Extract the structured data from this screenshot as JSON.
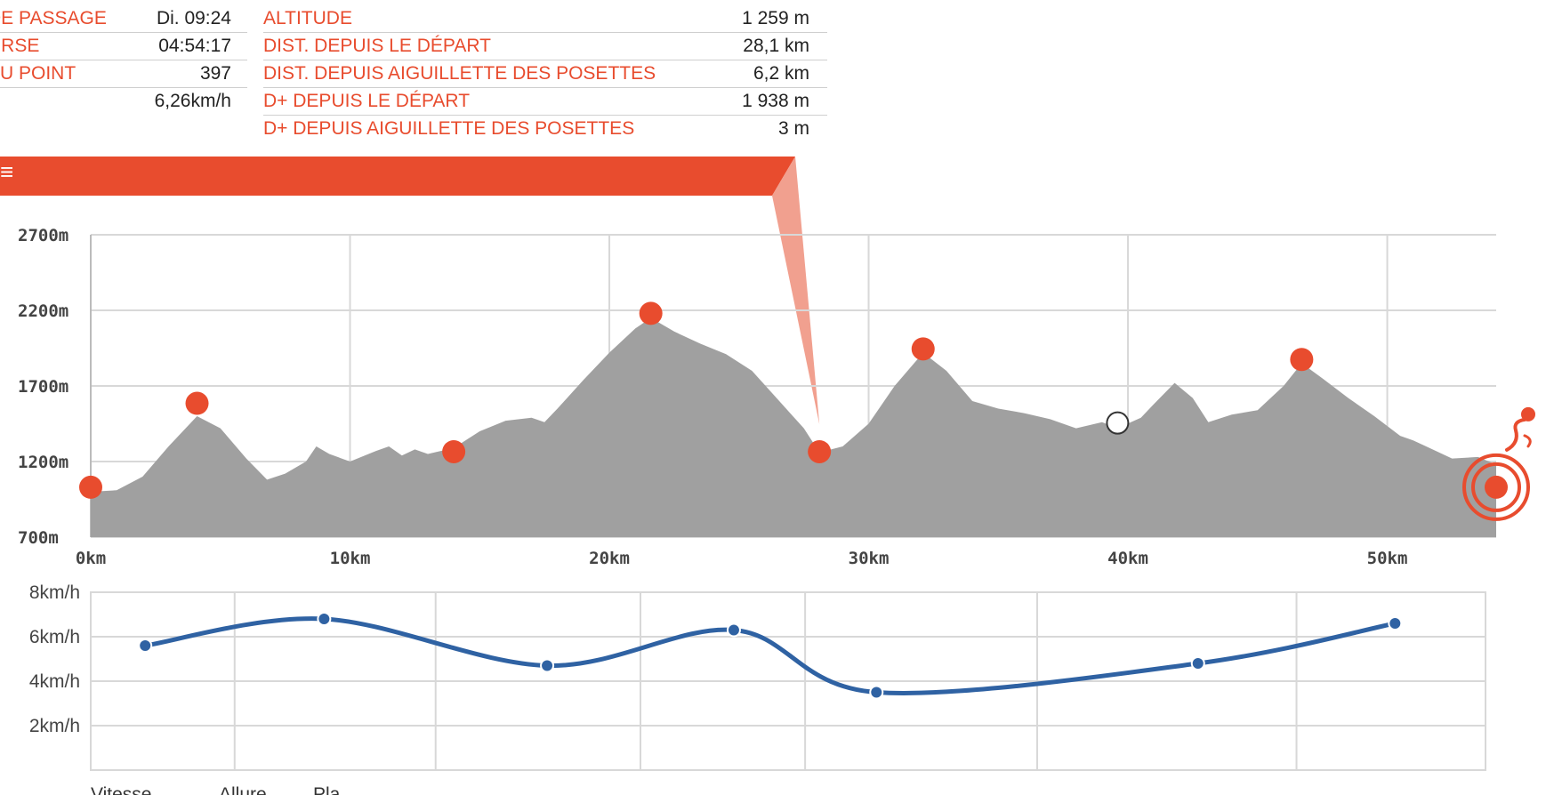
{
  "info_left": [
    {
      "label": "DE PASSAGE",
      "value": "Di. 09:24"
    },
    {
      "label": "URSE",
      "value": "04:54:17"
    },
    {
      "label": "AU POINT",
      "value": "397"
    },
    {
      "label": "",
      "value": "6,26km/h"
    }
  ],
  "info_right": [
    {
      "label": "ALTITUDE",
      "value": "1 259 m"
    },
    {
      "label": "DIST. DEPUIS LE DÉPART",
      "value": "28,1 km"
    },
    {
      "label": "DIST. DEPUIS AIGUILLETTE DES POSETTES",
      "value": "6,2 km"
    },
    {
      "label": "D+ DEPUIS LE DÉPART",
      "value": "1 938 m"
    },
    {
      "label": "D+ DEPUIS AIGUILLETTE DES POSETTES",
      "value": "3 m"
    }
  ],
  "banner_mark": "≡",
  "colors": {
    "accent": "#e84c2e",
    "profile": "#a0a0a0",
    "speed_line": "#2f62a3",
    "grid": "#d8d8d8"
  },
  "chart_data": [
    {
      "type": "area",
      "title": "",
      "xlabel": "",
      "ylabel": "",
      "xlim": [
        0,
        54.2
      ],
      "ylim": [
        700,
        2700
      ],
      "grid": true,
      "x_ticks": [
        "0km",
        "10km",
        "20km",
        "30km",
        "40km",
        "50km"
      ],
      "x_tick_values": [
        0,
        10,
        20,
        30,
        40,
        50
      ],
      "y_ticks": [
        "700m",
        "1200m",
        "1700m",
        "2200m",
        "2700m"
      ],
      "y_tick_values": [
        700,
        1200,
        1700,
        2200,
        2700
      ],
      "series": [
        {
          "x": [
            0,
            1,
            2,
            3,
            4.1,
            5,
            6,
            6.8,
            7.5,
            8.3,
            8.7,
            9.2,
            10,
            11,
            11.5,
            12,
            12.5,
            13,
            14,
            15,
            16,
            17,
            17.5,
            18,
            19,
            20,
            21,
            21.6,
            22.5,
            23.5,
            24.5,
            25.5,
            26.5,
            27.5,
            28.1,
            29,
            30,
            31,
            32.1,
            33,
            34,
            35,
            36,
            37,
            38,
            39,
            39.6,
            40.5,
            41,
            41.8,
            42.5,
            43.1,
            44,
            45,
            46,
            46.7,
            47.5,
            48.5,
            49.5,
            50.5,
            51,
            51.5,
            52.5,
            53.5,
            54.2
          ],
          "y": [
            1000,
            1010,
            1100,
            1300,
            1500,
            1420,
            1220,
            1080,
            1120,
            1200,
            1300,
            1250,
            1200,
            1270,
            1300,
            1240,
            1280,
            1250,
            1290,
            1400,
            1470,
            1490,
            1460,
            1550,
            1740,
            1920,
            2080,
            2150,
            2060,
            1980,
            1910,
            1800,
            1610,
            1420,
            1260,
            1300,
            1450,
            1700,
            1920,
            1800,
            1600,
            1550,
            1520,
            1480,
            1420,
            1460,
            1420,
            1490,
            1580,
            1720,
            1620,
            1460,
            1510,
            1540,
            1700,
            1850,
            1750,
            1620,
            1500,
            1370,
            1340,
            1300,
            1220,
            1230,
            1180
          ]
        }
      ],
      "checkpoints": [
        {
          "x": 0,
          "y": 1030
        },
        {
          "x": 4.1,
          "y": 1585
        },
        {
          "x": 14,
          "y": 1265
        },
        {
          "x": 21.6,
          "y": 2180
        },
        {
          "x": 28.1,
          "y": 1265
        },
        {
          "x": 32.1,
          "y": 1945
        },
        {
          "x": 46.7,
          "y": 1875
        },
        {
          "x": 54.2,
          "y": 1030
        }
      ],
      "current_position": {
        "x": 39.6,
        "y": 1455
      },
      "selected_point": {
        "x": 28.1,
        "y": 1259
      }
    },
    {
      "type": "line",
      "title": "",
      "xlabel": "",
      "ylabel": "",
      "ylim": [
        0,
        8
      ],
      "grid": true,
      "y_ticks": [
        "2km/h",
        "4km/h",
        "6km/h",
        "8km/h"
      ],
      "y_tick_values": [
        2,
        4,
        6,
        8
      ],
      "series": [
        {
          "x": [
            2.1,
            9,
            17.6,
            24.8,
            30.3,
            42.7,
            50.3
          ],
          "y": [
            5.6,
            6.8,
            4.7,
            6.3,
            3.5,
            4.8,
            6.6
          ]
        }
      ],
      "legend": [
        "Vitesse",
        "Allure",
        "Pla"
      ],
      "legend_position": "bottom-left"
    }
  ]
}
